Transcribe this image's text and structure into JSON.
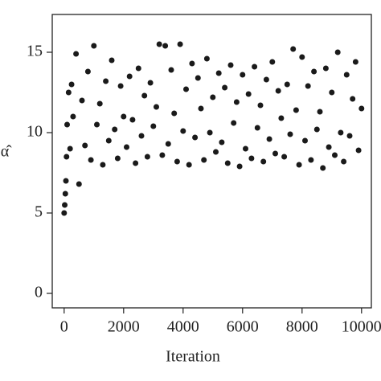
{
  "chart_data": {
    "type": "scatter",
    "x_label": "Iteration",
    "y_label": "α̂",
    "color": "#1a1a1a",
    "xlim": [
      -400,
      10330
    ],
    "ylim": [
      -0.9,
      17.35
    ],
    "xticks": [
      0,
      2000,
      4000,
      6000,
      8000,
      10000
    ],
    "yticks": [
      0,
      5,
      10,
      15
    ],
    "x": [
      0,
      20,
      40,
      60,
      80,
      100,
      150,
      200,
      250,
      300,
      400,
      500,
      600,
      700,
      800,
      900,
      1000,
      1100,
      1200,
      1300,
      1400,
      1500,
      1600,
      1700,
      1800,
      1900,
      2000,
      2100,
      2200,
      2300,
      2400,
      2500,
      2600,
      2700,
      2800,
      2900,
      3000,
      3100,
      3200,
      3300,
      3400,
      3500,
      3600,
      3700,
      3800,
      3900,
      4000,
      4100,
      4200,
      4300,
      4400,
      4500,
      4600,
      4700,
      4800,
      4900,
      5000,
      5100,
      5200,
      5300,
      5400,
      5500,
      5600,
      5700,
      5800,
      5900,
      6000,
      6100,
      6200,
      6300,
      6400,
      6500,
      6600,
      6700,
      6800,
      6900,
      7000,
      7100,
      7200,
      7300,
      7400,
      7500,
      7600,
      7700,
      7800,
      7900,
      8000,
      8100,
      8200,
      8300,
      8400,
      8500,
      8600,
      8700,
      8800,
      8900,
      9000,
      9100,
      9200,
      9300,
      9400,
      9500,
      9600,
      9700,
      9800,
      9900,
      10000
    ],
    "values": [
      5.0,
      5.5,
      6.2,
      7.0,
      8.5,
      10.5,
      12.5,
      9.0,
      13.0,
      11.0,
      14.9,
      6.8,
      12.0,
      9.2,
      13.8,
      8.3,
      15.4,
      10.5,
      11.8,
      8.0,
      13.2,
      9.5,
      14.5,
      10.2,
      8.4,
      12.9,
      11.0,
      9.1,
      13.5,
      10.8,
      8.1,
      14.0,
      9.8,
      12.3,
      8.5,
      13.1,
      10.4,
      11.6,
      15.5,
      8.6,
      15.4,
      9.3,
      13.9,
      11.2,
      8.2,
      15.5,
      10.1,
      12.7,
      8.0,
      14.3,
      9.7,
      13.4,
      11.5,
      8.3,
      14.6,
      10.0,
      12.2,
      8.8,
      13.7,
      9.4,
      12.8,
      8.1,
      14.2,
      10.6,
      11.9,
      7.9,
      13.6,
      9.0,
      12.4,
      8.4,
      14.1,
      10.3,
      11.7,
      8.2,
      13.3,
      9.6,
      14.4,
      8.7,
      12.6,
      10.9,
      8.5,
      13.0,
      9.9,
      15.2,
      11.4,
      8.0,
      14.7,
      9.5,
      12.9,
      8.3,
      13.8,
      10.2,
      11.3,
      7.8,
      14.0,
      9.1,
      12.5,
      8.6,
      15.0,
      10.0,
      8.2,
      13.6,
      9.8,
      12.1,
      14.4,
      8.9,
      11.5
    ]
  }
}
